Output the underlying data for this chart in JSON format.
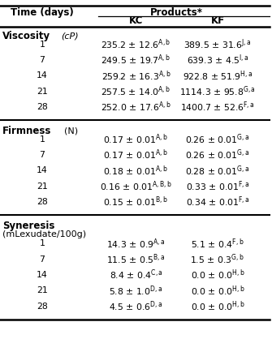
{
  "col_header_time": "Time (days)",
  "col_header_products": "Products*",
  "col_kc": "KC",
  "col_kf": "KF",
  "sections": [
    {
      "name": "Viscosity",
      "unit_italic": " (cP)",
      "name_bold": true,
      "two_line": false,
      "rows": [
        {
          "day": "1",
          "kc": "235.2 ± 12.6",
          "kc_sup": "A,b",
          "kf": "389.5 ± 31.6",
          "kf_sup": "J,a"
        },
        {
          "day": "7",
          "kc": "249.5 ± 19.7",
          "kc_sup": "A,b",
          "kf": "639.3 ± 4.5",
          "kf_sup": "I,a"
        },
        {
          "day": "14",
          "kc": "259.2 ± 16.3",
          "kc_sup": "A,b",
          "kf": "922.8 ± 51.9",
          "kf_sup": "H,a"
        },
        {
          "day": "21",
          "kc": "257.5 ± 14.0",
          "kc_sup": "A,b",
          "kf": "1114.3 ± 95.8",
          "kf_sup": "G,a"
        },
        {
          "day": "28",
          "kc": "252.0 ± 17.6",
          "kc_sup": "A,b",
          "kf": "1400.7 ± 52.6",
          "kf_sup": "F,a"
        }
      ]
    },
    {
      "name": "Firmness",
      "unit_italic": "  (N)",
      "name_bold": true,
      "two_line": false,
      "rows": [
        {
          "day": "1",
          "kc": "0.17 ± 0.01",
          "kc_sup": "A,b",
          "kf": "0.26 ± 0.01",
          "kf_sup": "G,a"
        },
        {
          "day": "7",
          "kc": "0.17 ± 0.01",
          "kc_sup": "A,b",
          "kf": "0.26 ± 0.01",
          "kf_sup": "G,a"
        },
        {
          "day": "14",
          "kc": "0.18 ± 0.01",
          "kc_sup": "A,b",
          "kf": "0.28 ± 0.01",
          "kf_sup": "G,a"
        },
        {
          "day": "21",
          "kc": "0.16 ± 0.01",
          "kc_sup": "A,B,b",
          "kf": "0.33 ± 0.01",
          "kf_sup": "F,a"
        },
        {
          "day": "28",
          "kc": "0.15 ± 0.01",
          "kc_sup": "B,b",
          "kf": "0.34 ± 0.01",
          "kf_sup": "F,a"
        }
      ]
    },
    {
      "name": "Syneresis",
      "unit_italic": "(mLexudate/100g)",
      "name_bold": true,
      "two_line": true,
      "rows": [
        {
          "day": "1",
          "kc": "14.3 ± 0.9",
          "kc_sup": "A,a",
          "kf": "5.1 ± 0.4",
          "kf_sup": "F,b"
        },
        {
          "day": "7",
          "kc": "11.5 ± 0.5",
          "kc_sup": "B,a",
          "kf": "1.5 ± 0.3",
          "kf_sup": "G,b"
        },
        {
          "day": "14",
          "kc": "8.4 ± 0.4",
          "kc_sup": "C,a",
          "kf": "0.0 ± 0.0",
          "kf_sup": "H,b"
        },
        {
          "day": "21",
          "kc": "5.8 ± 1.0",
          "kc_sup": "D,a",
          "kf": "0.0 ± 0.0",
          "kf_sup": "H,b"
        },
        {
          "day": "28",
          "kc": "4.5 ± 0.6",
          "kc_sup": "D,a",
          "kf": "0.0 ± 0.0",
          "kf_sup": "H,b"
        }
      ]
    }
  ],
  "bg_color": "#ffffff",
  "text_color": "#000000",
  "line_color": "#000000",
  "fig_width": 3.35,
  "fig_height": 4.34,
  "dpi": 100
}
